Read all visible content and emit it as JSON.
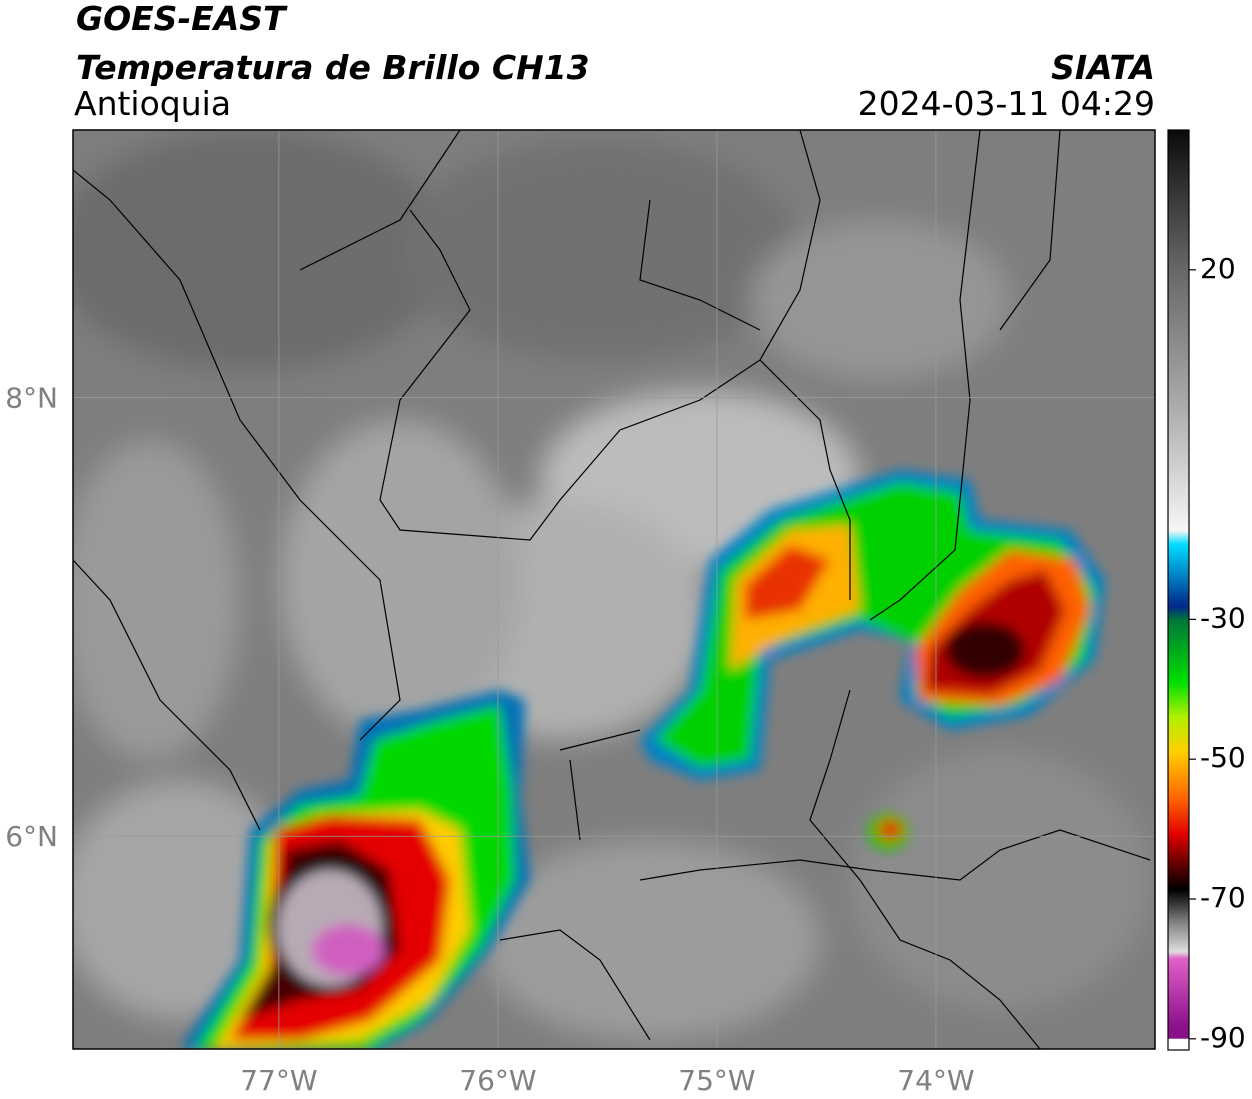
{
  "header": {
    "title": "GOES-EAST",
    "subtitle": "Temperatura de Brillo CH13",
    "region": "Antioquia",
    "source": "SIATA",
    "datetime": "2024-03-11 04:29"
  },
  "map": {
    "lonlim": [
      -77.94,
      -73.0
    ],
    "latlim": [
      5.03,
      9.22
    ],
    "lon_ticks": [
      {
        "value": -77,
        "label": "77°W"
      },
      {
        "value": -76,
        "label": "76°W"
      },
      {
        "value": -75,
        "label": "75°W"
      },
      {
        "value": -74,
        "label": "74°W"
      }
    ],
    "lat_ticks": [
      {
        "value": 8,
        "label": "8°N"
      },
      {
        "value": 6,
        "label": "6°N"
      }
    ],
    "grid": true
  },
  "colorbar": {
    "lim": [
      -91.6,
      40
    ],
    "ticks": [
      20,
      -30,
      -50,
      -70,
      -90
    ],
    "colormap": [
      [
        40,
        "#0a0a0a"
      ],
      [
        30,
        "#3a3a3a"
      ],
      [
        20,
        "#666666"
      ],
      [
        0,
        "#ababab"
      ],
      [
        -18,
        "#f6f6f6"
      ],
      [
        -20,
        "#00dcff"
      ],
      [
        -25,
        "#0078c0"
      ],
      [
        -29,
        "#002888"
      ],
      [
        -31,
        "#007838"
      ],
      [
        -40,
        "#00e000"
      ],
      [
        -45,
        "#b0f000"
      ],
      [
        -50,
        "#ffd000"
      ],
      [
        -57,
        "#ff6000"
      ],
      [
        -62,
        "#e00000"
      ],
      [
        -67,
        "#500000"
      ],
      [
        -70,
        "#000000"
      ],
      [
        -75,
        "#888888"
      ],
      [
        -79,
        "#dddddd"
      ],
      [
        -80,
        "#e060c8"
      ],
      [
        -90,
        "#8a108a"
      ]
    ]
  }
}
